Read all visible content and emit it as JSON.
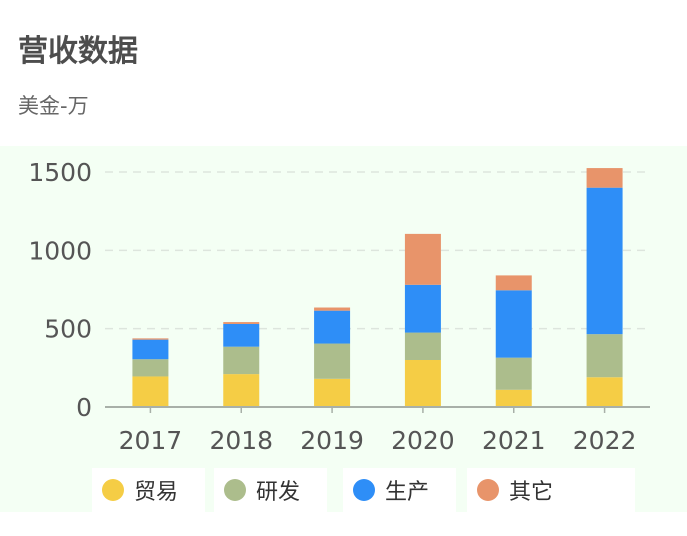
{
  "title": "营收数据",
  "subtitle": "美金-万",
  "chart_data": {
    "type": "bar",
    "stacked": true,
    "categories": [
      "2017",
      "2018",
      "2019",
      "2020",
      "2021",
      "2022"
    ],
    "series": [
      {
        "name": "贸易",
        "color": "#f5cd45",
        "values": [
          195,
          210,
          180,
          300,
          110,
          190
        ]
      },
      {
        "name": "研发",
        "color": "#acbd8c",
        "values": [
          110,
          175,
          225,
          175,
          205,
          275
        ]
      },
      {
        "name": "生产",
        "color": "#2e8ef7",
        "values": [
          125,
          145,
          210,
          305,
          430,
          935
        ]
      },
      {
        "name": "其它",
        "color": "#e8946a",
        "values": [
          8,
          12,
          20,
          325,
          95,
          125
        ]
      }
    ],
    "ylim": [
      0,
      1500
    ],
    "yticks": [
      0,
      500,
      1000,
      1500
    ],
    "grid": true,
    "legend_position": "bottom"
  }
}
